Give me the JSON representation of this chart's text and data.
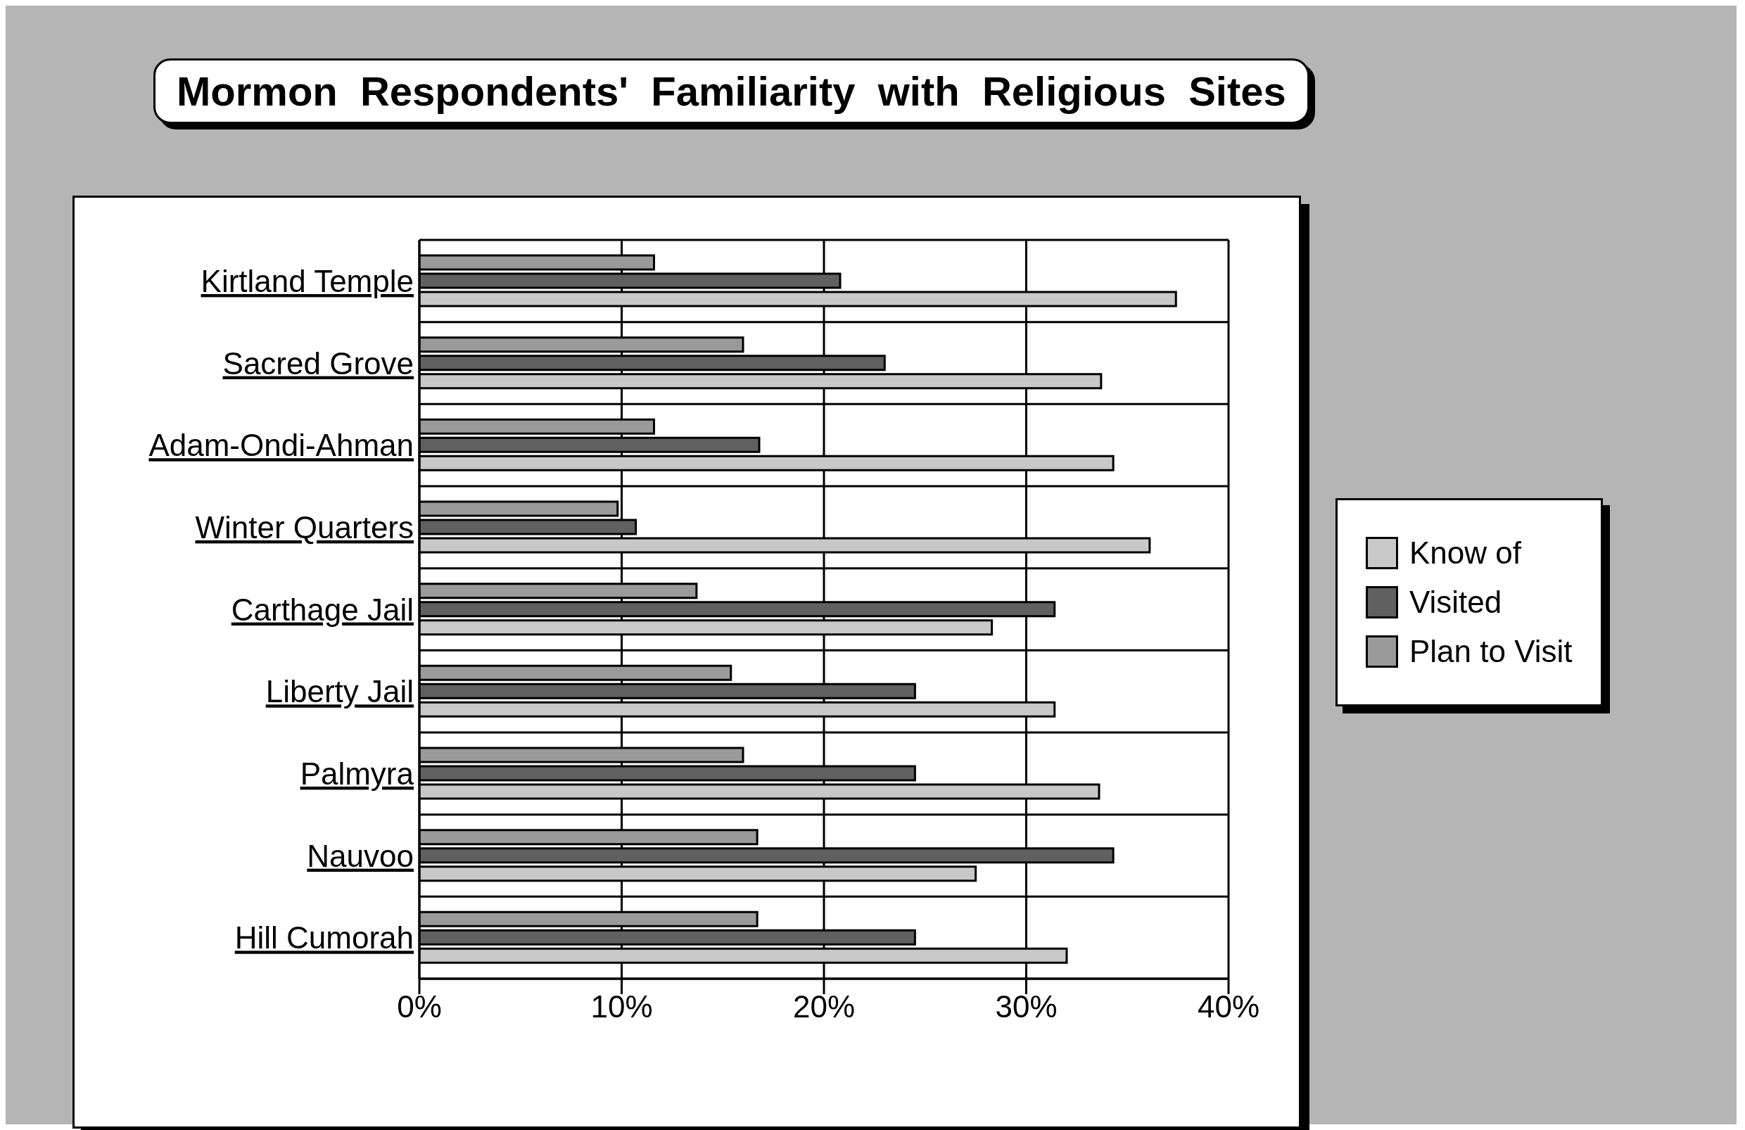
{
  "chart_data": {
    "type": "bar",
    "orientation": "horizontal",
    "title": "Mormon  Respondents'  Familiarity  with  Religious  Sites",
    "categories": [
      "Kirtland  Temple",
      "Sacred Grove",
      "Adam-Ondi-Ahman",
      "Winter  Quarters",
      "Carthage  Jail",
      "Liberty  Jail",
      "Palmyra",
      "Nauvoo",
      "Hill  Cumorah"
    ],
    "series": [
      {
        "name": "Know of",
        "color": "#c8c8c8",
        "values": [
          37.4,
          33.7,
          34.3,
          36.1,
          28.3,
          31.4,
          33.6,
          27.5,
          32.0
        ]
      },
      {
        "name": "Visited",
        "color": "#606060",
        "values": [
          20.8,
          23.0,
          16.8,
          10.7,
          31.4,
          24.5,
          24.5,
          34.3,
          24.5
        ]
      },
      {
        "name": "Plan to Visit",
        "color": "#9a9a9a",
        "values": [
          11.6,
          16.0,
          11.6,
          9.8,
          13.7,
          15.4,
          16.0,
          16.7,
          16.7
        ]
      }
    ],
    "xlim": [
      0,
      40
    ],
    "xticks": [
      {
        "value": 0,
        "label": "0%"
      },
      {
        "value": 10,
        "label": "10%"
      },
      {
        "value": 20,
        "label": "20%"
      },
      {
        "value": 30,
        "label": "30%"
      },
      {
        "value": 40,
        "label": "40%"
      }
    ],
    "grid": true,
    "legend": "right"
  }
}
